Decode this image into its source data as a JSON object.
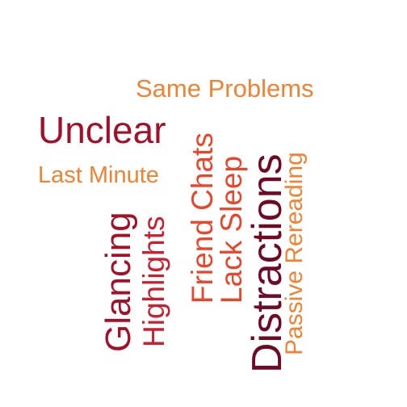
{
  "cloud": {
    "words": {
      "same_problems": {
        "text": "Same Problems",
        "color": "#f08233"
      },
      "unclear": {
        "text": "Unclear",
        "color": "#a3102a"
      },
      "last_minute": {
        "text": "Last Minute",
        "color": "#f08233"
      },
      "friend_chats": {
        "text": "Friend Chats",
        "color": "#e8452a"
      },
      "lack_sleep": {
        "text": "Lack Sleep",
        "color": "#e8452a"
      },
      "distractions": {
        "text": "Distractions",
        "color": "#6e0a24"
      },
      "passive_rereading": {
        "text": "Passive Rereading",
        "color": "#f08233"
      },
      "glancing": {
        "text": "Glancing",
        "color": "#a3102a"
      },
      "highlights": {
        "text": "Highlights",
        "color": "#c8202e"
      }
    }
  }
}
